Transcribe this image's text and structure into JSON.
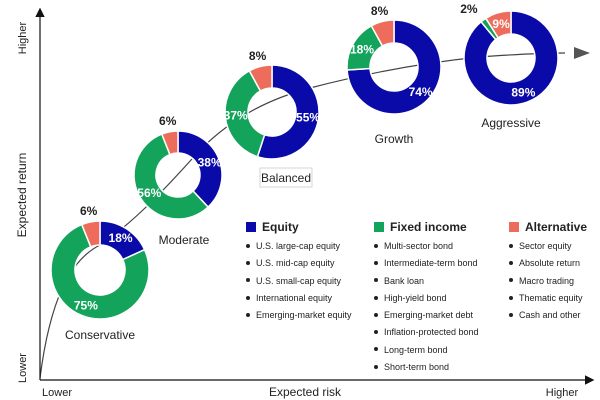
{
  "chart_data": {
    "type": "donut",
    "xlabel": "Expected risk",
    "ylabel": "Expected return",
    "x_low": "Lower",
    "x_high": "Higher",
    "y_low": "Lower",
    "y_high": "Higher",
    "colors": {
      "equity": "#0a0aa8",
      "fixed": "#13a35b",
      "alt": "#ee6c5c"
    },
    "portfolios": [
      {
        "name": "Conservative",
        "equity": 18,
        "fixed": 75,
        "alt": 6
      },
      {
        "name": "Moderate",
        "equity": 38,
        "fixed": 56,
        "alt": 6
      },
      {
        "name": "Balanced",
        "equity": 55,
        "fixed": 37,
        "alt": 8
      },
      {
        "name": "Growth",
        "equity": 74,
        "fixed": 18,
        "alt": 8
      },
      {
        "name": "Aggressive",
        "equity": 89,
        "fixed": 2,
        "alt": 9
      }
    ],
    "legend": {
      "equity": {
        "title": "Equity",
        "items": [
          "U.S. large-cap equity",
          "U.S. mid-cap equity",
          "U.S. small-cap equity",
          "International equity",
          "Emerging-market equity"
        ]
      },
      "fixed": {
        "title": "Fixed income",
        "items": [
          "Multi-sector bond",
          "Intermediate-term bond",
          "Bank loan",
          "High-yield bond",
          "Emerging-market debt",
          "Inflation-protected bond",
          "Long-term bond",
          "Short-term bond"
        ]
      },
      "alt": {
        "title": "Alternative",
        "items": [
          "Sector equity",
          "Absolute return",
          "Macro trading",
          "Thematic equity",
          "Cash and other"
        ]
      }
    }
  }
}
